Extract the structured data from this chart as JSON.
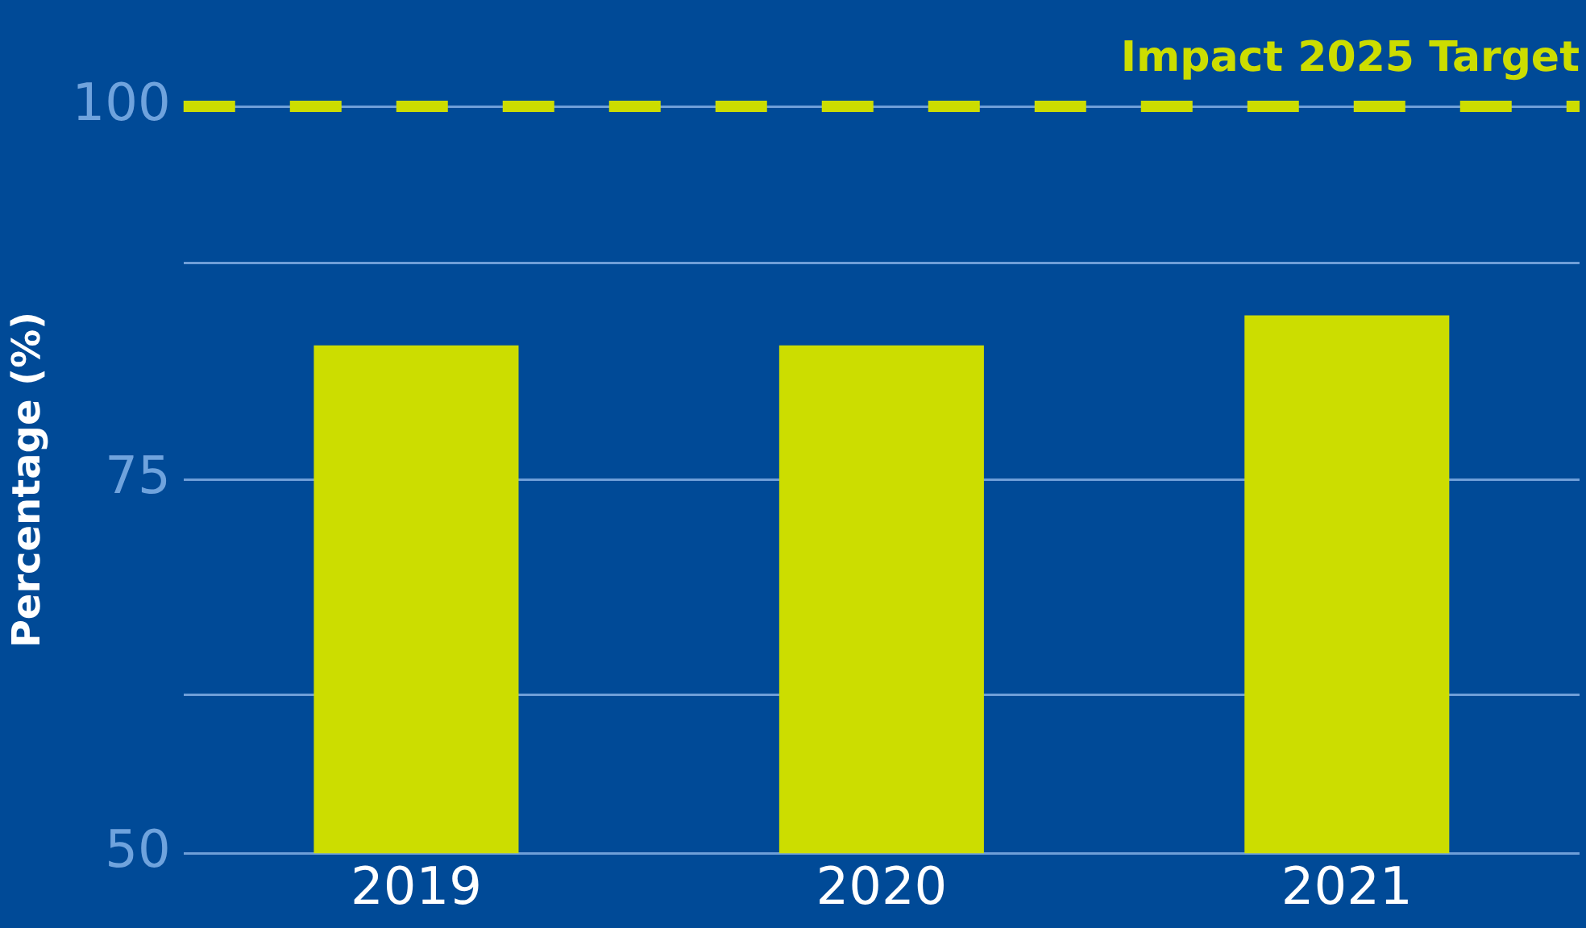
{
  "chart_data": {
    "type": "bar",
    "ylabel": "Percentage (%)",
    "categories": [
      "2019",
      "2020",
      "2021"
    ],
    "series": [
      {
        "color": "#ccdd00",
        "values": [
          84,
          84,
          86
        ]
      }
    ],
    "ylim": [
      50,
      100
    ],
    "yticks": [
      50,
      {
        "value": 60.6,
        "label": null
      },
      75,
      {
        "value": 89.5,
        "label": null
      },
      100
    ],
    "grid": "y",
    "ref_lines": [
      {
        "axis": "y",
        "value": 100,
        "label": "Impact 2025 Target",
        "color": "#ccdd00",
        "line_style": "dashed"
      }
    ]
  }
}
